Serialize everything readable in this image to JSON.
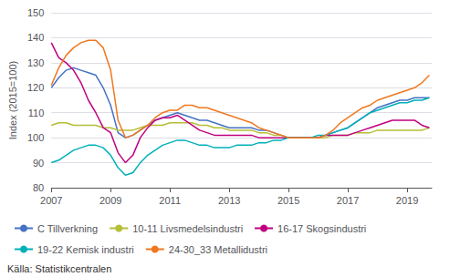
{
  "chart_data": {
    "type": "line",
    "ylabel": "Index (2015=100)",
    "annotations": [
      "Källa: Statistikcentralen"
    ],
    "x": [
      2007.0,
      2007.25,
      2007.5,
      2007.75,
      2008.0,
      2008.25,
      2008.5,
      2008.75,
      2009.0,
      2009.25,
      2009.5,
      2009.75,
      2010.0,
      2010.25,
      2010.5,
      2010.75,
      2011.0,
      2011.25,
      2011.5,
      2011.75,
      2012.0,
      2012.25,
      2012.5,
      2012.75,
      2013.0,
      2013.25,
      2013.5,
      2013.75,
      2014.0,
      2014.25,
      2014.5,
      2014.75,
      2015.0,
      2015.25,
      2015.5,
      2015.75,
      2016.0,
      2016.25,
      2016.5,
      2016.75,
      2017.0,
      2017.25,
      2017.5,
      2017.75,
      2018.0,
      2018.25,
      2018.5,
      2018.75,
      2019.0,
      2019.25,
      2019.5,
      2019.75
    ],
    "xlim": [
      2007.0,
      2019.83
    ],
    "xticks": [
      2007,
      2009,
      2011,
      2013,
      2015,
      2017,
      2019
    ],
    "ylim": [
      80,
      150
    ],
    "yticks": [
      80,
      90,
      100,
      110,
      120,
      130,
      140,
      150
    ],
    "grid": true,
    "legend": "bottom",
    "series": [
      {
        "name": "C Tillverkning",
        "color": "#4472c4",
        "values": [
          120,
          124,
          127,
          128,
          127,
          126,
          125,
          120,
          113,
          102,
          100,
          101,
          103,
          105,
          107,
          108,
          109,
          110,
          109,
          108,
          107,
          107,
          106,
          105,
          104,
          104,
          104,
          104,
          103,
          103,
          102,
          101,
          100,
          100,
          100,
          100,
          100,
          101,
          102,
          103,
          104,
          106,
          108,
          110,
          112,
          113,
          114,
          115,
          115,
          116,
          116,
          116
        ]
      },
      {
        "name": "10-11 Livsmedelsindustri",
        "color": "#b5be35",
        "values": [
          105,
          106,
          106,
          105,
          105,
          105,
          105,
          104,
          104,
          103,
          103,
          103,
          104,
          105,
          105,
          105,
          106,
          106,
          106,
          106,
          105,
          105,
          104,
          104,
          103,
          103,
          103,
          103,
          102,
          102,
          101,
          101,
          100,
          100,
          100,
          100,
          100,
          100,
          101,
          101,
          101,
          102,
          102,
          102,
          103,
          103,
          103,
          103,
          103,
          103,
          103,
          104
        ]
      },
      {
        "name": "16-17 Skogsindustri",
        "color": "#c00080",
        "values": [
          138,
          132,
          130,
          127,
          122,
          115,
          110,
          104,
          102,
          94,
          90,
          93,
          100,
          104,
          107,
          108,
          108,
          109,
          107,
          105,
          103,
          102,
          101,
          101,
          101,
          101,
          101,
          101,
          100,
          100,
          100,
          100,
          100,
          100,
          100,
          100,
          100,
          101,
          101,
          101,
          101,
          102,
          103,
          104,
          105,
          106,
          107,
          107,
          107,
          107,
          105,
          104
        ]
      },
      {
        "name": "19-22 Kemisk industri",
        "color": "#00b0b9",
        "values": [
          90,
          91,
          93,
          95,
          96,
          97,
          97,
          96,
          93,
          88,
          85,
          86,
          90,
          93,
          95,
          97,
          98,
          99,
          99,
          98,
          97,
          97,
          96,
          96,
          96,
          97,
          97,
          97,
          98,
          98,
          99,
          99,
          100,
          100,
          100,
          100,
          101,
          101,
          102,
          103,
          104,
          106,
          108,
          110,
          111,
          112,
          113,
          114,
          114,
          115,
          115,
          116
        ]
      },
      {
        "name": "24-30_33 Metallidustri",
        "color": "#f07820",
        "values": [
          121,
          128,
          133,
          136,
          138,
          139,
          139,
          136,
          127,
          107,
          100,
          101,
          103,
          105,
          108,
          110,
          111,
          111,
          113,
          113,
          112,
          112,
          111,
          110,
          109,
          108,
          107,
          106,
          104,
          103,
          102,
          101,
          100,
          100,
          100,
          100,
          100,
          101,
          103,
          106,
          108,
          110,
          112,
          113,
          115,
          116,
          117,
          118,
          119,
          120,
          122,
          125
        ]
      }
    ]
  }
}
